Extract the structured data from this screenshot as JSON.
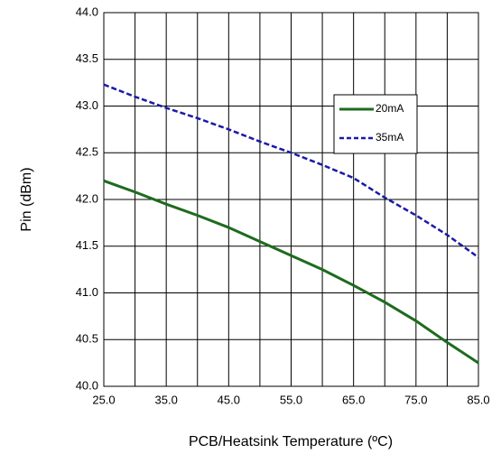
{
  "chart_data": {
    "type": "line",
    "x_label": "PCB/Heatsink Temperature (ºC)",
    "y_label": "Pin (dBm)",
    "x": [
      25,
      30,
      35,
      40,
      45,
      50,
      55,
      60,
      65,
      70,
      75,
      80,
      85
    ],
    "series": [
      {
        "name": "20mA",
        "color": "#1e6b1e",
        "dash": "solid",
        "values": [
          42.2,
          42.08,
          41.95,
          41.83,
          41.7,
          41.55,
          41.4,
          41.25,
          41.08,
          40.9,
          40.7,
          40.47,
          40.25
        ]
      },
      {
        "name": "35mA",
        "color": "#1a1aa6",
        "dash": "dashed",
        "values": [
          43.23,
          43.1,
          42.98,
          42.87,
          42.75,
          42.62,
          42.5,
          42.37,
          42.23,
          42.02,
          41.83,
          41.62,
          41.38
        ]
      }
    ],
    "xlim": [
      25,
      85
    ],
    "xticks": [
      {
        "value": 25,
        "label": "25.0"
      },
      {
        "value": 35,
        "label": "35.0"
      },
      {
        "value": 45,
        "label": "45.0"
      },
      {
        "value": 55,
        "label": "55.0"
      },
      {
        "value": 65,
        "label": "65.0"
      },
      {
        "value": 75,
        "label": "75.0"
      },
      {
        "value": 85,
        "label": "85.0"
      }
    ],
    "x_minor_grid": [
      30,
      40,
      50,
      60,
      70,
      80
    ],
    "ylim": [
      40,
      44
    ],
    "yticks": [
      {
        "value": 40,
        "label": "40.0"
      },
      40.5,
      {
        "value": 41,
        "label": "41.0"
      },
      41.5,
      {
        "value": 42,
        "label": "42.0"
      },
      42.5,
      {
        "value": 43,
        "label": "43.0"
      },
      43.5,
      {
        "value": 44,
        "label": "44.0"
      }
    ],
    "grid": true,
    "legend": "upper-right"
  }
}
